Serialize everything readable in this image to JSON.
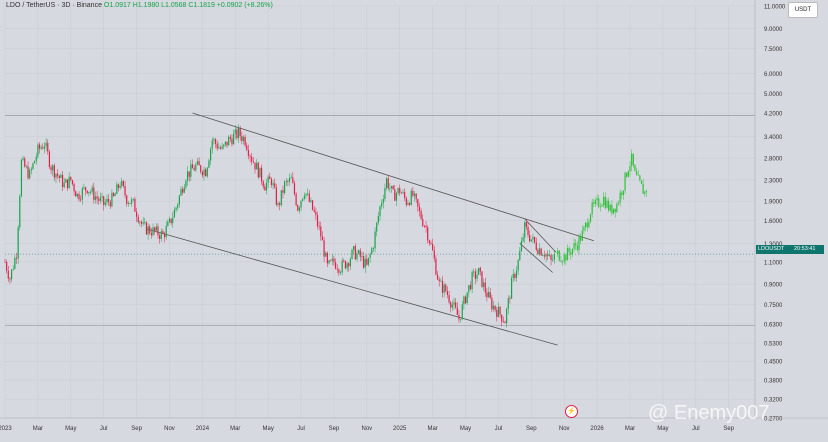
{
  "header": {
    "symbol": "LDO / TetherUS · 3D · Binance",
    "ohlc": "O1.0917  H1.1980  L1.0568  C1.1819  +0.0902 (+8.26%)"
  },
  "unit_button": "USDT",
  "price_tag": {
    "symbol": "LDOUSDT",
    "countdown": "20:53:41"
  },
  "watermark": "@ Enemy007",
  "colors": {
    "up": "#16a34a",
    "down": "#e11d48",
    "projection": "#2fbf3a",
    "background": "#d7d9e0",
    "line": "#555555"
  },
  "chart_data": {
    "type": "candlestick",
    "y_scale": "log",
    "ylim": [
      0.27,
      11
    ],
    "y_ticks": [
      11.0,
      9.0,
      7.5,
      6.0,
      5.0,
      4.2,
      3.4,
      2.8,
      2.3,
      1.9,
      1.6,
      1.3,
      1.1,
      0.9,
      0.75,
      0.63,
      0.53,
      0.45,
      0.38,
      0.32,
      0.27
    ],
    "y_tick_labels": [
      "11.0000",
      "9.0000",
      "7.5000",
      "6.0000",
      "5.0000",
      "4.2000",
      "3.4000",
      "2.8000",
      "2.3000",
      "1.9000",
      "1.6000",
      "1.3000",
      "1.1000",
      "0.9000",
      "0.7500",
      "0.6300",
      "0.5300",
      "0.4500",
      "0.3800",
      "0.3200",
      "0.2700"
    ],
    "x_ticks": [
      {
        "t": 0,
        "label": "2023"
      },
      {
        "t": 2,
        "label": "Mar"
      },
      {
        "t": 4,
        "label": "May"
      },
      {
        "t": 6,
        "label": "Jul"
      },
      {
        "t": 8,
        "label": "Sep"
      },
      {
        "t": 10,
        "label": "Nov"
      },
      {
        "t": 12,
        "label": "2024"
      },
      {
        "t": 14,
        "label": "Mar"
      },
      {
        "t": 16,
        "label": "May"
      },
      {
        "t": 18,
        "label": "Jul"
      },
      {
        "t": 20,
        "label": "Sep"
      },
      {
        "t": 22,
        "label": "Nov"
      },
      {
        "t": 24,
        "label": "2025"
      },
      {
        "t": 26,
        "label": "Mar"
      },
      {
        "t": 28,
        "label": "May"
      },
      {
        "t": 30,
        "label": "Jul"
      },
      {
        "t": 32,
        "label": "Sep"
      },
      {
        "t": 34,
        "label": "Nov"
      },
      {
        "t": 36,
        "label": "2026"
      },
      {
        "t": 38,
        "label": "Mar"
      },
      {
        "t": 40,
        "label": "May"
      },
      {
        "t": 42,
        "label": "Jul"
      },
      {
        "t": 44,
        "label": "Sep"
      }
    ],
    "last_price": 1.18,
    "horizontal_levels": [
      4.1,
      0.62
    ],
    "trend_lines": [
      {
        "name": "upper-channel",
        "points": [
          [
            11.4,
            4.2
          ],
          [
            35.8,
            1.33
          ]
        ]
      },
      {
        "name": "lower-channel",
        "points": [
          [
            8.6,
            1.48
          ],
          [
            33.6,
            0.52
          ]
        ]
      },
      {
        "name": "wedge-top",
        "points": [
          [
            31.6,
            1.62
          ],
          [
            33.5,
            1.2
          ]
        ]
      },
      {
        "name": "wedge-bottom",
        "points": [
          [
            31.3,
            1.3
          ],
          [
            33.3,
            1.0
          ]
        ]
      }
    ],
    "price_path": [
      [
        0.0,
        1.1
      ],
      [
        0.3,
        0.95
      ],
      [
        0.7,
        1.2
      ],
      [
        1.0,
        2.7
      ],
      [
        1.5,
        2.4
      ],
      [
        2.0,
        3.0
      ],
      [
        2.4,
        3.2
      ],
      [
        2.8,
        2.6
      ],
      [
        3.2,
        2.4
      ],
      [
        3.6,
        2.2
      ],
      [
        4.0,
        2.3
      ],
      [
        4.4,
        2.0
      ],
      [
        5.0,
        2.15
      ],
      [
        5.6,
        1.95
      ],
      [
        6.0,
        1.85
      ],
      [
        6.6,
        1.95
      ],
      [
        7.0,
        2.25
      ],
      [
        7.4,
        1.95
      ],
      [
        7.8,
        1.85
      ],
      [
        8.4,
        1.5
      ],
      [
        9.0,
        1.45
      ],
      [
        9.6,
        1.4
      ],
      [
        10.0,
        1.55
      ],
      [
        10.4,
        1.8
      ],
      [
        11.0,
        2.4
      ],
      [
        11.6,
        2.6
      ],
      [
        12.2,
        2.5
      ],
      [
        12.6,
        3.3
      ],
      [
        13.2,
        3.0
      ],
      [
        13.6,
        3.3
      ],
      [
        14.2,
        3.5
      ],
      [
        14.6,
        3.3
      ],
      [
        15.0,
        2.8
      ],
      [
        15.4,
        2.5
      ],
      [
        15.8,
        2.2
      ],
      [
        16.2,
        2.3
      ],
      [
        16.6,
        1.8
      ],
      [
        17.0,
        2.2
      ],
      [
        17.4,
        2.3
      ],
      [
        17.8,
        1.8
      ],
      [
        18.2,
        2.1
      ],
      [
        18.8,
        1.7
      ],
      [
        19.2,
        1.4
      ],
      [
        19.6,
        1.05
      ],
      [
        20.0,
        1.1
      ],
      [
        20.4,
        1.05
      ],
      [
        20.8,
        1.1
      ],
      [
        21.2,
        1.2
      ],
      [
        21.6,
        1.15
      ],
      [
        22.0,
        1.05
      ],
      [
        22.4,
        1.3
      ],
      [
        22.8,
        1.8
      ],
      [
        23.2,
        2.3
      ],
      [
        23.6,
        2.0
      ],
      [
        24.0,
        2.1
      ],
      [
        24.4,
        1.9
      ],
      [
        24.8,
        2.0
      ],
      [
        25.2,
        1.7
      ],
      [
        25.6,
        1.5
      ],
      [
        26.0,
        1.2
      ],
      [
        26.4,
        0.9
      ],
      [
        26.8,
        0.85
      ],
      [
        27.2,
        0.75
      ],
      [
        27.6,
        0.66
      ],
      [
        28.0,
        0.8
      ],
      [
        28.4,
        0.95
      ],
      [
        28.8,
        1.0
      ],
      [
        29.2,
        0.85
      ],
      [
        29.6,
        0.75
      ],
      [
        30.0,
        0.7
      ],
      [
        30.4,
        0.65
      ],
      [
        30.8,
        0.9
      ],
      [
        31.2,
        1.1
      ],
      [
        31.6,
        1.5
      ],
      [
        32.0,
        1.35
      ],
      [
        32.4,
        1.25
      ],
      [
        32.8,
        1.2
      ],
      [
        33.2,
        1.1
      ],
      [
        33.5,
        1.18
      ]
    ],
    "projection_path": [
      [
        33.6,
        1.18
      ],
      [
        34.0,
        1.15
      ],
      [
        34.4,
        1.22
      ],
      [
        34.8,
        1.3
      ],
      [
        35.2,
        1.45
      ],
      [
        35.6,
        1.75
      ],
      [
        36.0,
        1.85
      ],
      [
        36.4,
        1.95
      ],
      [
        36.8,
        1.75
      ],
      [
        37.2,
        1.85
      ],
      [
        37.6,
        2.2
      ],
      [
        37.9,
        2.6
      ],
      [
        38.1,
        2.75
      ],
      [
        38.3,
        2.4
      ],
      [
        38.6,
        2.2
      ],
      [
        38.9,
        2.05
      ],
      [
        39.1,
        2.25
      ]
    ]
  }
}
